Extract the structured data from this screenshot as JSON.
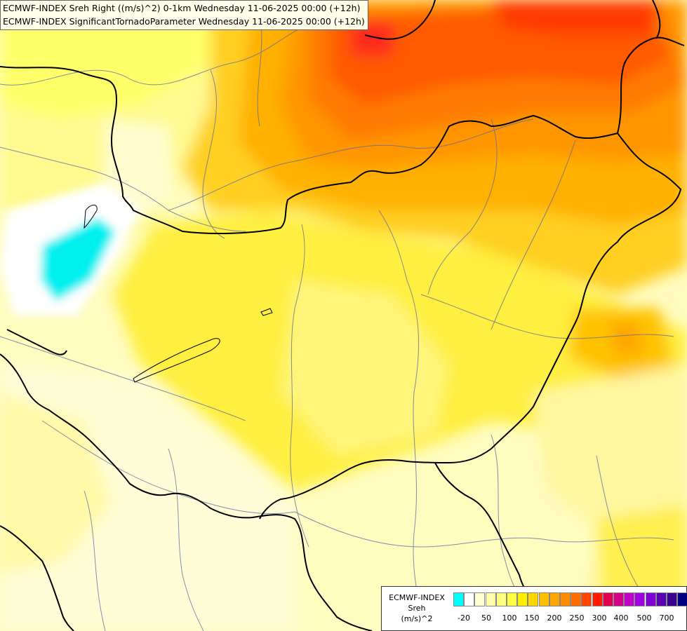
{
  "header": {
    "line1": "ECMWF-INDEX Sreh Right ((m/s)^2) 0-1km Wednesday 11-06-2025 00:00 (+12h)",
    "line2": "ECMWF-INDEX SignificantTornadoParameter Wednesday 11-06-2025 00:00 (+12h)"
  },
  "legend": {
    "line1": "ECMWF-INDEX",
    "line2": "Sreh",
    "line3": "(m/s)^2",
    "colors": [
      "#00ffff",
      "#ffffff",
      "#ffffd2",
      "#ffffaa",
      "#ffff80",
      "#ffff44",
      "#ffee00",
      "#ffd700",
      "#ffbe00",
      "#ffa500",
      "#ff8c00",
      "#ff6f00",
      "#ff4500",
      "#ff1a00",
      "#e0004e",
      "#d4008a",
      "#c000c8",
      "#a000e0",
      "#8000d4",
      "#5a00b0",
      "#3a0090",
      "#000080"
    ],
    "ticks": [
      "-20",
      "50",
      "100",
      "150",
      "200",
      "250",
      "300",
      "400",
      "500",
      "700"
    ]
  }
}
